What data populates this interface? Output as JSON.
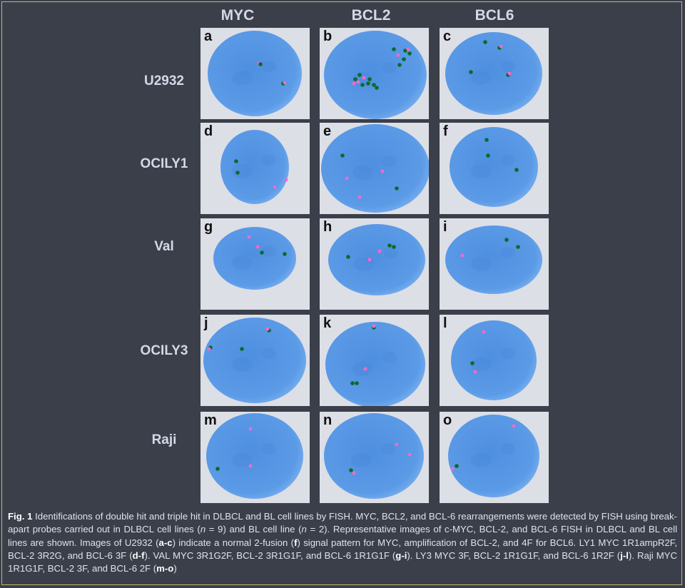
{
  "columns": [
    "MYC",
    "BCL2",
    "BCL6"
  ],
  "rows": [
    "U2932",
    "OCILY1",
    "Val",
    "OCILY3",
    "Raji"
  ],
  "panel_letters": [
    "a",
    "b",
    "c",
    "d",
    "e",
    "f",
    "g",
    "h",
    "i",
    "j",
    "k",
    "l",
    "m",
    "n",
    "o"
  ],
  "caption": {
    "label": "Fig. 1",
    "part1": " Identifications of double hit and triple hit in DLBCL and BL cell lines by FISH. MYC, BCL2, and BCL-6 rearrangements were detected by FISH using break-apart probes carried out in DLBCL cell lines (",
    "n1_var": "n",
    "part2": " = 9) and BL cell line (",
    "n2_var": "n",
    "part3": " = 2). Representative images of c-MYC, BCL-2, and BCL-6 FISH in DLBCL and BL cell lines are shown. Images of U2932 (",
    "ref_ac": "a-c",
    "part4": ") indicate a normal 2-fusion (",
    "ref_f": "f",
    "part5": ") signal pattern for MYC, amplification of BCL-2, and 4F for BCL6. LY1 MYC 1R1ampR2F, BCL-2 3R2G, and BCL-6 3F (",
    "ref_df": "d-f",
    "part6": "). VAL MYC 3R1G2F, BCL-2 3R1G1F, and BCL-6 1R1G1F (",
    "ref_gi": "g-i",
    "part7": "). LY3 MYC 3F, BCL-2 1R1G1F, and BCL-6 1R2F (",
    "ref_jl": "j-l",
    "part8": "). Raji MYC 1R1G1F, BCL-2 3F, and BCL-6 2F (",
    "ref_mo": "m-o",
    "part9": ")"
  },
  "colors": {
    "background": "#3a3f4a",
    "panel_bg": "#dcdfe6",
    "nucleus": "#5a9ae6",
    "green_signal": "#0a6b2a",
    "red_signal": "#ff66cc"
  }
}
